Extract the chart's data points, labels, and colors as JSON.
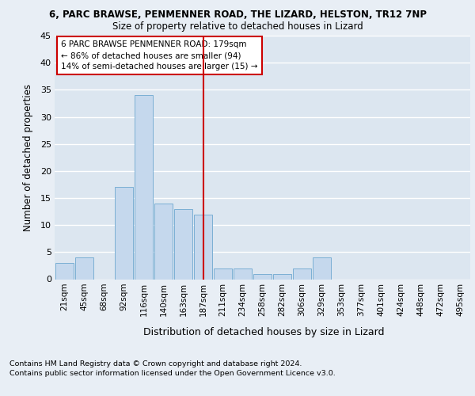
{
  "title1": "6, PARC BRAWSE, PENMENNER ROAD, THE LIZARD, HELSTON, TR12 7NP",
  "title2": "Size of property relative to detached houses in Lizard",
  "xlabel": "Distribution of detached houses by size in Lizard",
  "ylabel": "Number of detached properties",
  "categories": [
    "21sqm",
    "45sqm",
    "68sqm",
    "92sqm",
    "116sqm",
    "140sqm",
    "163sqm",
    "187sqm",
    "211sqm",
    "234sqm",
    "258sqm",
    "282sqm",
    "306sqm",
    "329sqm",
    "353sqm",
    "377sqm",
    "401sqm",
    "424sqm",
    "448sqm",
    "472sqm",
    "495sqm"
  ],
  "values": [
    3,
    4,
    0,
    17,
    34,
    14,
    13,
    12,
    2,
    2,
    1,
    1,
    2,
    4,
    0,
    0,
    0,
    0,
    0,
    0,
    0
  ],
  "bar_color": "#c5d8ed",
  "bar_edge_color": "#7bafd4",
  "ref_line_x": 7,
  "ref_line_label": "6 PARC BRAWSE PENMENNER ROAD: 179sqm",
  "ref_line_sub1": "← 86% of detached houses are smaller (94)",
  "ref_line_sub2": "14% of semi-detached houses are larger (15) →",
  "ref_line_color": "#cc0000",
  "ylim": [
    0,
    45
  ],
  "yticks": [
    0,
    5,
    10,
    15,
    20,
    25,
    30,
    35,
    40,
    45
  ],
  "background_color": "#e8eef5",
  "axes_bg_color": "#dce6f0",
  "grid_color": "#ffffff",
  "footer1": "Contains HM Land Registry data © Crown copyright and database right 2024.",
  "footer2": "Contains public sector information licensed under the Open Government Licence v3.0."
}
